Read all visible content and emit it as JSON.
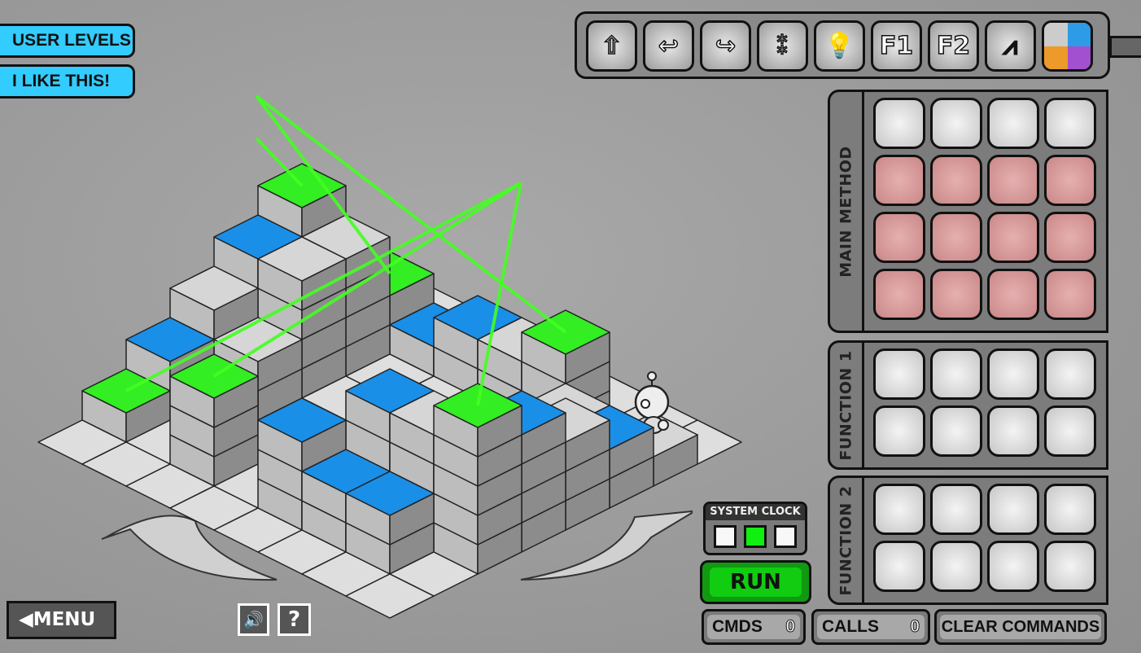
{
  "top_left": {
    "user_levels": "USER LEVELS",
    "i_like_this": "I LIKE THIS!"
  },
  "toolbar": {
    "commands": [
      {
        "icon": "move-forward-arrow-icon",
        "label": "⇧"
      },
      {
        "icon": "turn-right-icon",
        "label": "↩"
      },
      {
        "icon": "turn-left-icon",
        "label": "↪"
      },
      {
        "icon": "jump-spring-icon",
        "label": "⁑"
      },
      {
        "icon": "light-bulb-icon",
        "label": "💡"
      },
      {
        "icon": "function-1-icon",
        "label": "F1"
      },
      {
        "icon": "function-2-icon",
        "label": "F2"
      },
      {
        "icon": "zigzag-break-icon",
        "label": "⩘"
      }
    ],
    "color_picker": {
      "colors": [
        "#cccccc",
        "#2d9be6",
        "#ee9a2a",
        "#a24fd0"
      ]
    }
  },
  "panels": {
    "main_method": {
      "label": "MAIN METHOD",
      "rows": [
        [
          "empty",
          "empty",
          "empty",
          "empty"
        ],
        [
          "locked",
          "locked",
          "locked",
          "locked"
        ],
        [
          "locked",
          "locked",
          "locked",
          "locked"
        ],
        [
          "locked",
          "locked",
          "locked",
          "locked"
        ]
      ]
    },
    "function_1": {
      "label": "FUNCTION 1",
      "rows": [
        [
          "empty",
          "empty",
          "empty",
          "empty"
        ],
        [
          "empty",
          "empty",
          "empty",
          "empty"
        ]
      ]
    },
    "function_2": {
      "label": "FUNCTION 2",
      "rows": [
        [
          "empty",
          "empty",
          "empty",
          "empty"
        ],
        [
          "empty",
          "empty",
          "empty",
          "empty"
        ]
      ]
    }
  },
  "system_clock": {
    "label": "SYSTEM CLOCK",
    "active_index": 1
  },
  "run_label": "RUN",
  "stats": {
    "cmds_label": "CMDS",
    "cmds_value": "0",
    "calls_label": "CALLS",
    "calls_value": "0",
    "clear_label": "CLEAR COMMANDS"
  },
  "menu_label": "MENU",
  "help_label": "?",
  "colors": {
    "green_tile": "#33ee22",
    "blue_tile": "#1a8fe8",
    "gray_tile": "#d6d6d6",
    "laser": "#44ff22",
    "cyan_button": "#33ccff",
    "run_button": "#11bb11"
  },
  "board": {
    "size": 8,
    "heights": [
      [
        0,
        0,
        0,
        0,
        0,
        0,
        0,
        0
      ],
      [
        0,
        2,
        1,
        2,
        2,
        3,
        0,
        1
      ],
      [
        5,
        4,
        0,
        0,
        0,
        0,
        2,
        2
      ],
      [
        4,
        4,
        0,
        0,
        0,
        0,
        0,
        3
      ],
      [
        3,
        2,
        0,
        0,
        0,
        0,
        3,
        4
      ],
      [
        2,
        1,
        0,
        0,
        0,
        4,
        4,
        5
      ],
      [
        1,
        0,
        3,
        0,
        3,
        2,
        2,
        0
      ],
      [
        0,
        0,
        0,
        0,
        0,
        0,
        0,
        0
      ]
    ],
    "tops": [
      [
        "f",
        "f",
        "f",
        "f",
        "f",
        "f",
        "f",
        "f"
      ],
      [
        "f",
        "G",
        "B",
        "B",
        "g",
        "G",
        "f",
        "g"
      ],
      [
        "G",
        "g",
        "f",
        "f",
        "f",
        "f",
        "g",
        "B"
      ],
      [
        "B",
        "g",
        "f",
        "f",
        "f",
        "f",
        "f",
        "g"
      ],
      [
        "g",
        "g",
        "f",
        "f",
        "f",
        "f",
        "g",
        "B"
      ],
      [
        "B",
        "g",
        "f",
        "f",
        "f",
        "B",
        "g",
        "G"
      ],
      [
        "G",
        "f",
        "G",
        "f",
        "B",
        "B",
        "B",
        "f"
      ],
      [
        "f",
        "f",
        "f",
        "f",
        "f",
        "f",
        "f",
        "f"
      ]
    ]
  }
}
